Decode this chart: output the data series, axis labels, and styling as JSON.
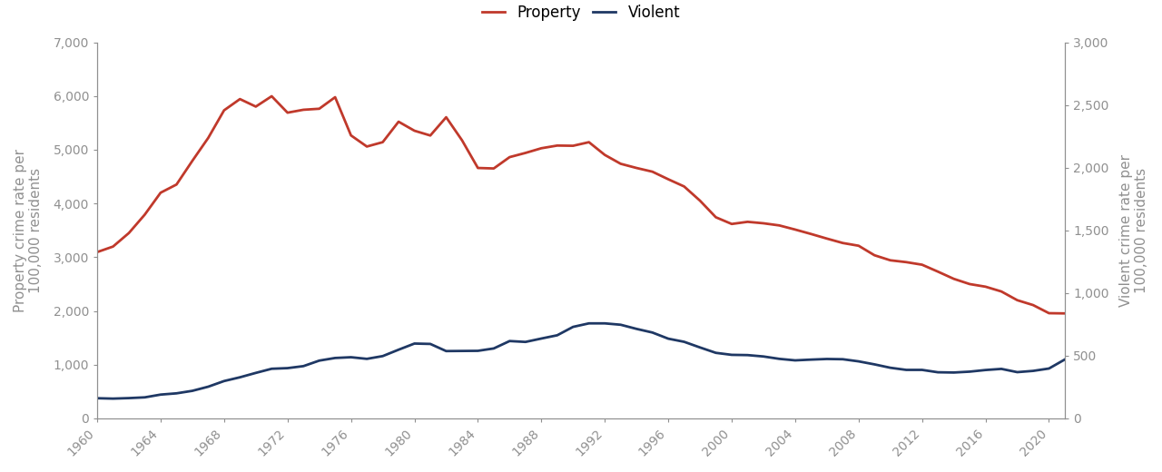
{
  "years": [
    1960,
    1961,
    1962,
    1963,
    1964,
    1965,
    1966,
    1967,
    1968,
    1969,
    1970,
    1971,
    1972,
    1973,
    1974,
    1975,
    1976,
    1977,
    1978,
    1979,
    1980,
    1981,
    1982,
    1983,
    1984,
    1985,
    1986,
    1987,
    1988,
    1989,
    1990,
    1991,
    1992,
    1993,
    1994,
    1995,
    1996,
    1997,
    1998,
    1999,
    2000,
    2001,
    2002,
    2003,
    2004,
    2005,
    2006,
    2007,
    2008,
    2009,
    2010,
    2011,
    2012,
    2013,
    2014,
    2015,
    2016,
    2017,
    2018,
    2019,
    2020,
    2021
  ],
  "property": [
    3095,
    3198,
    3450,
    3792,
    4200,
    4352,
    4793,
    5219,
    5733,
    5942,
    5802,
    5995,
    5689,
    5743,
    5762,
    5977,
    5266,
    5059,
    5140,
    5521,
    5353,
    5264,
    5604,
    5175,
    4660,
    4651,
    4862,
    4940,
    5027,
    5077,
    5073,
    5140,
    4903,
    4738,
    4660,
    4591,
    4450,
    4316,
    4052,
    3743,
    3618,
    3658,
    3631,
    3591,
    3514,
    3432,
    3346,
    3264,
    3213,
    3036,
    2942,
    2908,
    2860,
    2731,
    2597,
    2500,
    2451,
    2362,
    2200,
    2109,
    1958,
    1954
  ],
  "violent": [
    161,
    158,
    162,
    168,
    190,
    200,
    220,
    253,
    298,
    328,
    363,
    396,
    401,
    417,
    461,
    482,
    488,
    475,
    497,
    548,
    597,
    594,
    537,
    538,
    539,
    558,
    617,
    610,
    637,
    663,
    730,
    758,
    758,
    747,
    714,
    685,
    636,
    611,
    566,
    523,
    507,
    505,
    494,
    475,
    463,
    469,
    474,
    472,
    455,
    431,
    404,
    387,
    387,
    368,
    366,
    373,
    386,
    395,
    369,
    379,
    398,
    470
  ],
  "property_color": "#C0392B",
  "violent_color": "#1F3864",
  "property_label": "Property",
  "violent_label": "Violent",
  "ylabel_left": "Property crime rate per\n100,000 residents",
  "ylabel_right": "Violent crime rate per\n100,000 residents",
  "ylim_left": [
    0,
    7000
  ],
  "ylim_right": [
    0,
    3000
  ],
  "yticks_left": [
    0,
    1000,
    2000,
    3000,
    4000,
    5000,
    6000,
    7000
  ],
  "yticks_right": [
    0,
    500,
    1000,
    1500,
    2000,
    2500,
    3000
  ],
  "xtick_years": [
    1960,
    1964,
    1968,
    1972,
    1976,
    1980,
    1984,
    1988,
    1992,
    1996,
    2000,
    2004,
    2008,
    2012,
    2016,
    2020
  ],
  "axis_color": "#909090",
  "line_width": 2.0,
  "legend_fontsize": 12,
  "label_fontsize": 11,
  "tick_fontsize": 10,
  "bg_color": "#ffffff"
}
